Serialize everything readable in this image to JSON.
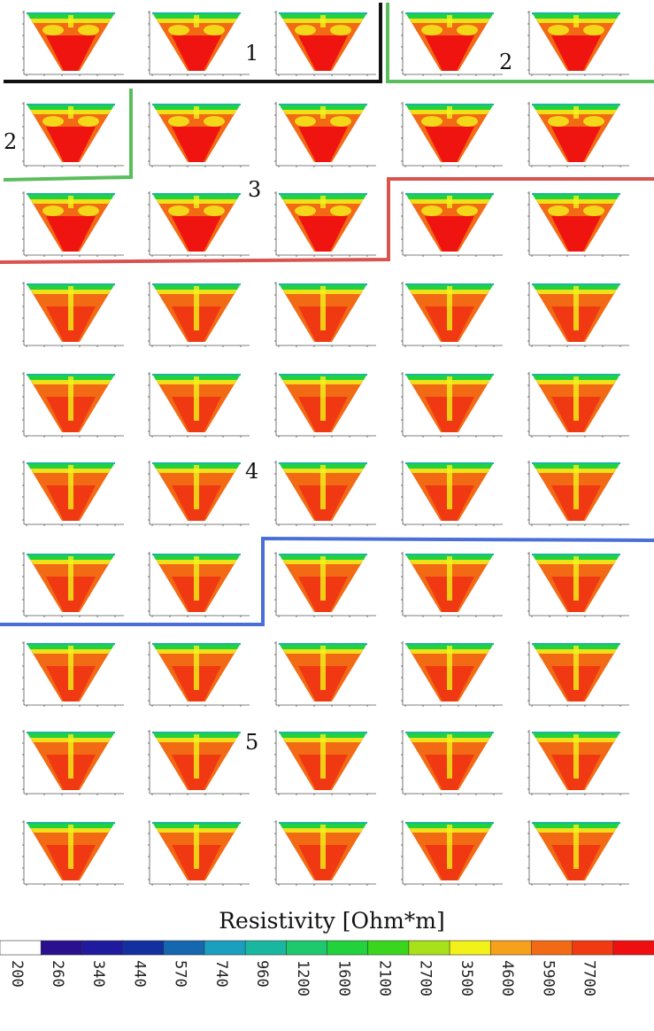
{
  "groups": [
    {
      "label": "1",
      "line_color": "#111111"
    },
    {
      "label": "2",
      "line_color": "#5bbd5b"
    },
    {
      "label": "2",
      "line_color": "#5bbd5b"
    },
    {
      "label": "3",
      "line_color": "#d9534f"
    },
    {
      "label": "4",
      "line_color": "#4a6fd8"
    },
    {
      "label": "5",
      "line_color": "#4a6fd8"
    }
  ],
  "grid": {
    "rows": 10,
    "cols": 5
  },
  "colorbar": {
    "title": "Resistivity [Ohm*m]",
    "ticks": [
      "200",
      "260",
      "340",
      "440",
      "570",
      "740",
      "960",
      "1200",
      "1600",
      "2100",
      "2700",
      "3500",
      "4600",
      "5900",
      "7700"
    ],
    "colors": [
      "#ffffff",
      "#2a0f8f",
      "#1f1a9e",
      "#12309f",
      "#1567b0",
      "#1a9fbf",
      "#19b7a0",
      "#1ec86e",
      "#22d23c",
      "#3ad61e",
      "#a8e01a",
      "#f2f21a",
      "#f7a11a",
      "#f26a14",
      "#f23a12",
      "#ee1010"
    ]
  }
}
